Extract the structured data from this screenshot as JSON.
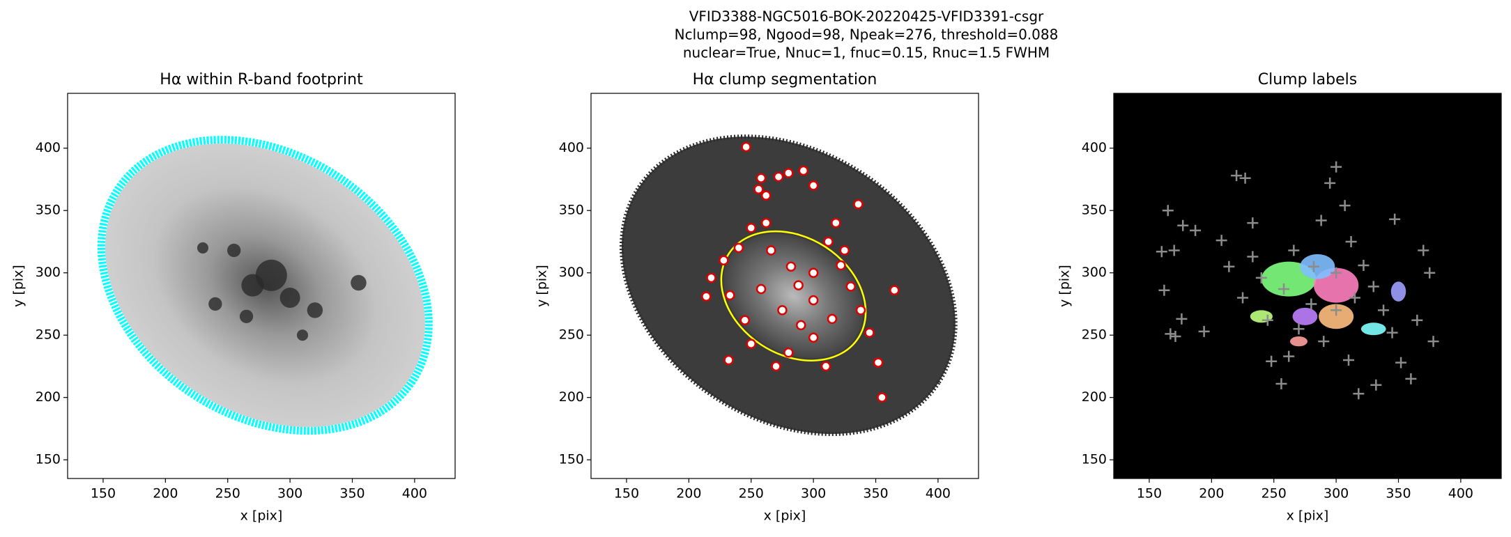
{
  "figure_title": [
    "VFID3388-NGC5016-BOK-20220425-VFID3391-csgr",
    "Nclump=98, Ngood=98, Npeak=276, threshold=0.088",
    "nuclear=True, Nnuc=1, fnuc=0.15, Rnuc=1.5 FWHM"
  ],
  "chart_data": [
    {
      "type": "image",
      "title": "Hα within R-band footprint",
      "xlabel": "x [pix]",
      "ylabel": "y [pix]",
      "xlim": [
        121.5,
        432.5
      ],
      "ylim": [
        135,
        444
      ],
      "xticks": [
        150,
        200,
        250,
        300,
        350,
        400
      ],
      "yticks": [
        150,
        200,
        250,
        300,
        350,
        400
      ],
      "background": "#ffffff",
      "contour_color": "#00ffff"
    },
    {
      "type": "image",
      "title": "Hα clump segmentation",
      "xlabel": "x [pix]",
      "ylabel": "y [pix]",
      "xlim": [
        121.5,
        432.5
      ],
      "ylim": [
        135,
        444
      ],
      "xticks": [
        150,
        200,
        250,
        300,
        350,
        400
      ],
      "yticks": [
        150,
        200,
        250,
        300,
        350,
        400
      ],
      "background": "#ffffff",
      "contour_color": "#ffff00",
      "series": [
        {
          "marker": "o",
          "color": "#dd0000",
          "x": [
            246,
            256,
            262,
            258,
            272,
            280,
            292,
            300,
            250,
            262,
            240,
            228,
            218,
            214,
            233,
            245,
            258,
            266,
            282,
            288,
            300,
            312,
            322,
            330,
            338,
            345,
            352,
            365,
            270,
            280,
            300,
            315,
            300,
            290,
            275,
            310,
            325,
            336,
            250,
            232,
            355,
            318
          ],
          "y": [
            401,
            367,
            362,
            376,
            377,
            380,
            382,
            370,
            336,
            340,
            320,
            310,
            296,
            281,
            282,
            262,
            287,
            318,
            305,
            290,
            300,
            325,
            306,
            289,
            270,
            252,
            228,
            286,
            225,
            236,
            248,
            263,
            278,
            258,
            270,
            225,
            318,
            355,
            243,
            230,
            200,
            340
          ]
        }
      ]
    },
    {
      "type": "image",
      "title": "Clump labels",
      "xlabel": "x [pix]",
      "ylabel": "y [pix]",
      "xlim": [
        121.5,
        432.5
      ],
      "ylim": [
        135,
        444
      ],
      "xticks": [
        150,
        200,
        250,
        300,
        350,
        400
      ],
      "yticks": [
        150,
        200,
        250,
        300,
        350,
        400
      ],
      "background": "#000000",
      "series": [
        {
          "marker": "+",
          "color": "#8c8c8c",
          "x": [
            165,
            160,
            170,
            177,
            187,
            162,
            167,
            171,
            176,
            194,
            208,
            214,
            220,
            227,
            233,
            233,
            225,
            240,
            245,
            248,
            256,
            262,
            270,
            258,
            266,
            282,
            288,
            295,
            300,
            307,
            312,
            322,
            330,
            338,
            345,
            352,
            360,
            365,
            375,
            378,
            370,
            347,
            332,
            318,
            310,
            290,
            280,
            300,
            315,
            300
          ],
          "y": [
            350,
            317,
            318,
            338,
            334,
            286,
            251,
            249,
            263,
            253,
            326,
            305,
            378,
            376,
            340,
            313,
            280,
            296,
            262,
            229,
            211,
            233,
            255,
            287,
            318,
            305,
            342,
            372,
            385,
            354,
            325,
            306,
            289,
            270,
            252,
            228,
            215,
            262,
            300,
            245,
            318,
            343,
            210,
            203,
            230,
            245,
            275,
            270,
            280,
            300
          ]
        }
      ]
    }
  ]
}
